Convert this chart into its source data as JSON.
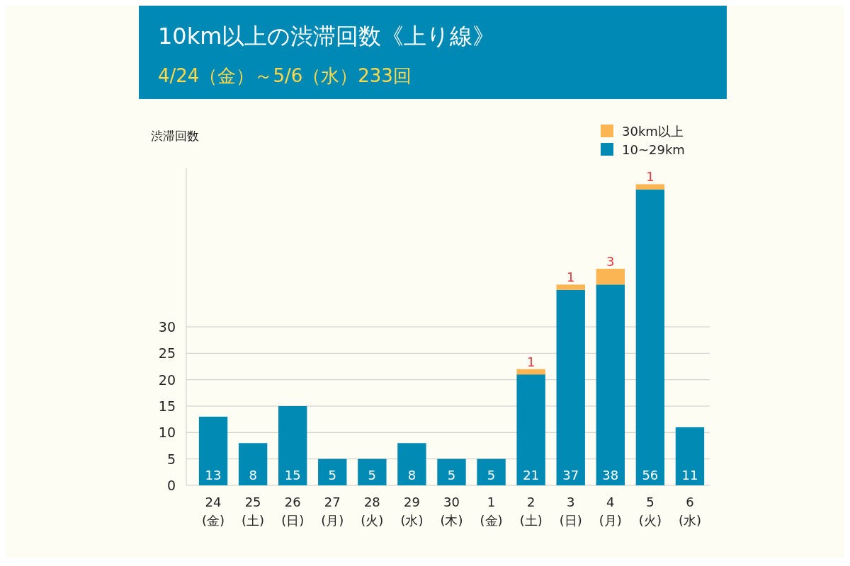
{
  "chart_data": {
    "type": "bar",
    "title": "10km以上の渋滞回数《上り線》",
    "subtitle": "4/24（金）～5/6（水）233回",
    "ylabel": "渋滞回数",
    "categories": [
      "24\n(金)",
      "25\n(土)",
      "26\n(日)",
      "27\n(月)",
      "28\n(火)",
      "29\n(水)",
      "30\n(木)",
      "1\n(金)",
      "2\n(土)",
      "3\n(日)",
      "4\n(月)",
      "5\n(火)",
      "6\n(水)"
    ],
    "stacked": true,
    "series": [
      {
        "name": "10~29km",
        "color": "#008ab4",
        "values": [
          13,
          8,
          15,
          5,
          5,
          8,
          5,
          5,
          21,
          37,
          38,
          56,
          11
        ]
      },
      {
        "name": "30km以上",
        "color": "#fbb552",
        "values": [
          null,
          null,
          null,
          null,
          null,
          null,
          null,
          null,
          1,
          1,
          3,
          1,
          null
        ]
      }
    ],
    "ylim": [
      0,
      60
    ],
    "yticks": [
      0,
      5,
      10,
      15,
      20,
      25,
      30
    ],
    "grid": "y",
    "legend": "top right",
    "data_labels": true
  }
}
